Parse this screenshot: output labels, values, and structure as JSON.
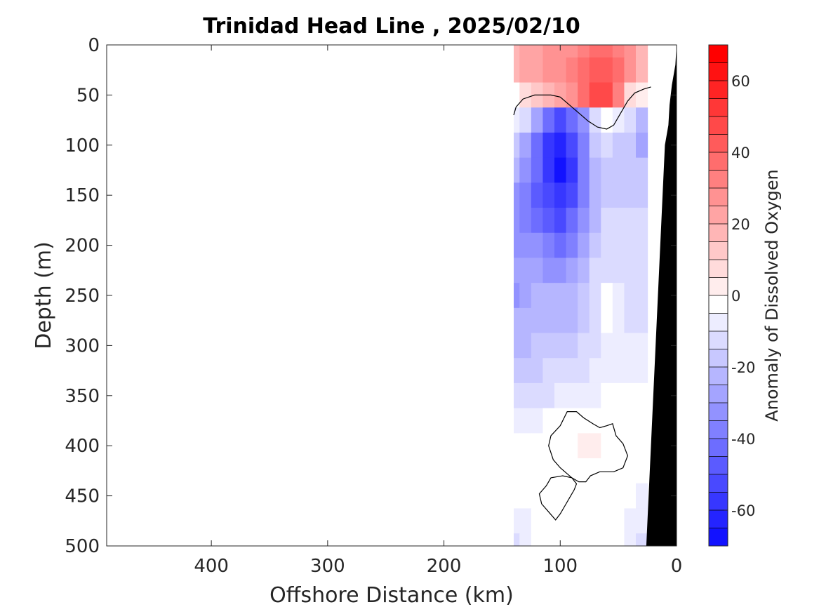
{
  "chart_data": {
    "type": "heatmap",
    "title": "Trinidad Head Line , 2025/02/10",
    "xlabel": "Offshore Distance (km)",
    "ylabel": "Depth (m)",
    "colorbar_label": "Anomaly of Dissolved Oxygen",
    "x_axis": {
      "range": [
        490,
        0
      ],
      "reversed": true,
      "ticks": [
        400,
        300,
        200,
        100,
        0
      ]
    },
    "y_axis": {
      "range": [
        0,
        500
      ],
      "reversed": true,
      "ticks": [
        0,
        50,
        100,
        150,
        200,
        250,
        300,
        350,
        400,
        450,
        500
      ]
    },
    "colorbar": {
      "range": [
        -70,
        70
      ],
      "step": 5,
      "ticks": [
        -60,
        -40,
        -20,
        0,
        20,
        40,
        60
      ],
      "colormap": "blue-white-red",
      "low_color": "#0000ff",
      "mid_color": "#ffffff",
      "high_color": "#ff0000"
    },
    "data_extent_x": [
      20,
      140
    ],
    "grid": false,
    "contours": [
      {
        "level": 0,
        "points": [
          [
            140,
            70
          ],
          [
            138,
            62
          ],
          [
            132,
            54
          ],
          [
            122,
            50
          ],
          [
            108,
            50
          ],
          [
            100,
            52
          ],
          [
            92,
            60
          ],
          [
            84,
            68
          ],
          [
            76,
            76
          ],
          [
            68,
            82
          ],
          [
            60,
            84
          ],
          [
            54,
            80
          ],
          [
            48,
            68
          ],
          [
            42,
            56
          ],
          [
            36,
            48
          ],
          [
            28,
            44
          ],
          [
            22,
            42
          ]
        ]
      },
      {
        "level": 0,
        "closed": true,
        "points": [
          [
            94,
            366
          ],
          [
            86,
            366
          ],
          [
            80,
            372
          ],
          [
            72,
            378
          ],
          [
            66,
            382
          ],
          [
            60,
            380
          ],
          [
            55,
            378
          ],
          [
            52,
            390
          ],
          [
            46,
            398
          ],
          [
            42,
            410
          ],
          [
            46,
            422
          ],
          [
            54,
            426
          ],
          [
            66,
            426
          ],
          [
            74,
            430
          ],
          [
            78,
            436
          ],
          [
            84,
            436
          ],
          [
            90,
            432
          ],
          [
            100,
            422
          ],
          [
            106,
            414
          ],
          [
            110,
            400
          ],
          [
            108,
            390
          ],
          [
            100,
            380
          ]
        ]
      },
      {
        "level": 0,
        "closed": true,
        "points": [
          [
            98,
            430
          ],
          [
            108,
            432
          ],
          [
            112,
            440
          ],
          [
            118,
            448
          ],
          [
            116,
            458
          ],
          [
            110,
            466
          ],
          [
            104,
            474
          ],
          [
            100,
            468
          ],
          [
            96,
            460
          ],
          [
            92,
            452
          ],
          [
            88,
            444
          ],
          [
            86,
            438
          ],
          [
            90,
            432
          ]
        ]
      }
    ],
    "field": {
      "x": [
        140,
        130,
        120,
        110,
        100,
        90,
        80,
        70,
        60,
        50,
        40,
        30,
        20
      ],
      "y": [
        0,
        25,
        50,
        75,
        100,
        125,
        150,
        175,
        200,
        225,
        250,
        275,
        300,
        325,
        350,
        375,
        400,
        425,
        450,
        475,
        500
      ],
      "values": [
        [
          22,
          24,
          26,
          28,
          30,
          32,
          34,
          38,
          40,
          36,
          30,
          20,
          null
        ],
        [
          22,
          24,
          26,
          28,
          32,
          36,
          40,
          44,
          46,
          42,
          32,
          20,
          null
        ],
        [
          2,
          8,
          14,
          18,
          24,
          32,
          42,
          52,
          48,
          36,
          12,
          4,
          null
        ],
        [
          -6,
          -12,
          -26,
          -40,
          -48,
          -40,
          -28,
          -8,
          -2,
          -6,
          -8,
          -18,
          null
        ],
        [
          -16,
          -26,
          -40,
          -54,
          -62,
          -52,
          -34,
          -16,
          -10,
          -14,
          -16,
          -24,
          null
        ],
        [
          -22,
          -30,
          -42,
          -56,
          -66,
          -56,
          -36,
          -18,
          -14,
          -14,
          -14,
          -16,
          null
        ],
        [
          -30,
          -36,
          -44,
          -50,
          -56,
          -50,
          -36,
          -20,
          -16,
          -14,
          -14,
          -14,
          null
        ],
        [
          -32,
          -34,
          -40,
          -44,
          -48,
          -42,
          -30,
          -18,
          -10,
          -12,
          -12,
          -12,
          null
        ],
        [
          -30,
          -30,
          -32,
          -36,
          -38,
          -34,
          -26,
          -16,
          -8,
          -10,
          -12,
          -12,
          null
        ],
        [
          -26,
          -24,
          -26,
          -28,
          -28,
          -26,
          -20,
          -12,
          -8,
          -8,
          -12,
          -12,
          null
        ],
        [
          -28,
          -26,
          -22,
          -22,
          -22,
          -20,
          -16,
          -10,
          -2,
          -6,
          -10,
          -10,
          null
        ],
        [
          -22,
          -22,
          -20,
          -20,
          -20,
          -18,
          -14,
          -8,
          -2,
          -6,
          -8,
          -8,
          null
        ],
        [
          -18,
          -18,
          -16,
          -16,
          -16,
          -14,
          -12,
          -8,
          -4,
          -4,
          -6,
          -6,
          null
        ],
        [
          -14,
          -14,
          -14,
          -12,
          -12,
          -10,
          -8,
          -6,
          -4,
          -4,
          -4,
          -4,
          null
        ],
        [
          -10,
          -10,
          -8,
          -8,
          -6,
          -6,
          -4,
          -4,
          -2,
          -2,
          -2,
          -2,
          null
        ],
        [
          -4,
          -4,
          -4,
          -2,
          -2,
          0,
          2,
          2,
          2,
          0,
          0,
          -2,
          null
        ],
        [
          0,
          0,
          0,
          0,
          0,
          2,
          4,
          4,
          2,
          2,
          0,
          -2,
          null
        ],
        [
          0,
          0,
          0,
          0,
          0,
          2,
          2,
          2,
          2,
          0,
          0,
          -2,
          null
        ],
        [
          0,
          0,
          0,
          0,
          0,
          0,
          0,
          0,
          0,
          0,
          -2,
          -4,
          null
        ],
        [
          -6,
          -4,
          0,
          0,
          0,
          0,
          0,
          0,
          0,
          0,
          -4,
          -6,
          null
        ],
        [
          -8,
          -6,
          -2,
          0,
          0,
          0,
          0,
          0,
          0,
          0,
          -6,
          -8,
          null
        ]
      ]
    },
    "bathymetry": {
      "color": "#000000",
      "points": [
        [
          0,
          0
        ],
        [
          1,
          20
        ],
        [
          4,
          40
        ],
        [
          6,
          60
        ],
        [
          7,
          80
        ],
        [
          10,
          100
        ],
        [
          12,
          150
        ],
        [
          14,
          200
        ],
        [
          16,
          250
        ],
        [
          18,
          300
        ],
        [
          20,
          350
        ],
        [
          22,
          400
        ],
        [
          24,
          450
        ],
        [
          26,
          500
        ]
      ]
    }
  }
}
